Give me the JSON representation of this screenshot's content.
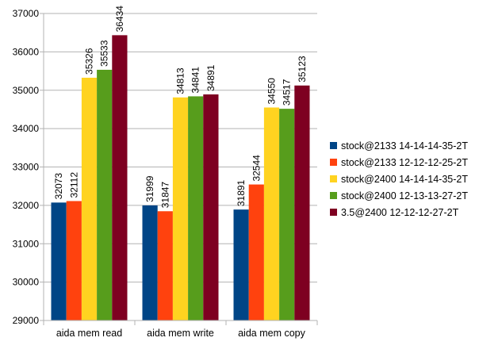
{
  "chart_data": {
    "type": "bar",
    "categories": [
      "aida mem read",
      "aida mem write",
      "aida mem copy"
    ],
    "ylim": [
      29000,
      37000
    ],
    "yticks": [
      29000,
      30000,
      31000,
      32000,
      33000,
      34000,
      35000,
      36000,
      37000
    ],
    "grid": "horizontal",
    "legend": "right",
    "data_labels": true,
    "series": [
      {
        "name": "stock@2133 14-14-14-35-2T",
        "color": "#004586",
        "values": [
          32073,
          31999,
          31891
        ]
      },
      {
        "name": "stock@2133 12-12-12-25-2T",
        "color": "#ff420e",
        "values": [
          32112,
          31847,
          32544
        ]
      },
      {
        "name": "stock@2400 14-14-14-35-2T",
        "color": "#ffd320",
        "values": [
          35326,
          34813,
          34550
        ]
      },
      {
        "name": "stock@2400 12-13-13-27-2T",
        "color": "#579d1c",
        "values": [
          35533,
          34841,
          34517
        ]
      },
      {
        "name": "3.5@2400 12-12-12-27-2T",
        "color": "#7e0021",
        "values": [
          36434,
          34891,
          35123
        ]
      }
    ]
  }
}
